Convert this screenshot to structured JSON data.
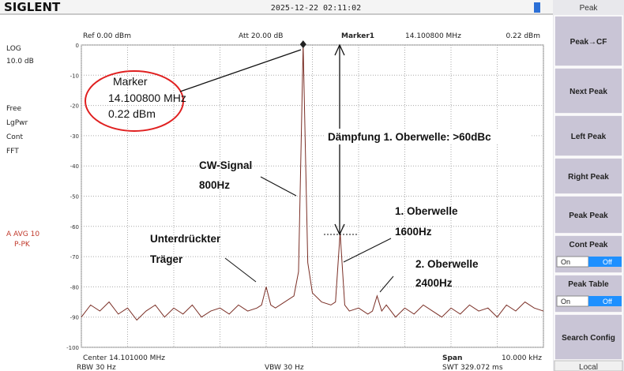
{
  "header": {
    "brand": "SIGLENT",
    "datetime": "2025-12-22  02:11:02"
  },
  "info": {
    "ref": "Ref 0.00 dBm",
    "att": "Att 20.00 dB",
    "marker": "Marker1",
    "marker_freq": "14.100800 MHz",
    "marker_level": "0.22 dBm"
  },
  "left_panel": [
    "LOG",
    "10.0 dB",
    "Free",
    "LgPwr",
    "Cont",
    "FFT"
  ],
  "trace_mode": [
    "A AVG 10",
    "P-PK"
  ],
  "footer": {
    "center": "Center 14.101000 MHz",
    "span_label": "Span",
    "span": "10.000 kHz",
    "rbw": "RBW 30 Hz",
    "vbw": "VBW 30 Hz",
    "swt": "SWT 329.072 ms"
  },
  "menu": {
    "title": "Peak",
    "buttons": [
      "Peak→CF",
      "Next Peak",
      "Left Peak",
      "Right Peak",
      "Peak Peak"
    ],
    "toggles": [
      {
        "label": "Cont Peak",
        "on": "On",
        "off": "Off"
      },
      {
        "label": "Peak Table",
        "on": "On",
        "off": "Off"
      }
    ],
    "search": "Search Config",
    "local": "Local"
  },
  "annotations": {
    "marker_box": [
      "Marker",
      "14.100800 MHz",
      "0.22 dBm"
    ],
    "attenuation": "Dämpfung 1. Oberwelle: >60dBc",
    "cw": [
      "CW-Signal",
      "800Hz"
    ],
    "harmonic1": [
      "1. Oberwelle",
      "1600Hz"
    ],
    "carrier": [
      "Unterdrückter",
      "Träger"
    ],
    "harmonic2": [
      "2. Oberwelle",
      "2400Hz"
    ]
  },
  "chart_data": {
    "type": "line",
    "x": [
      14.096,
      14.0962,
      14.0964,
      14.0966,
      14.0968,
      14.097,
      14.0972,
      14.0974,
      14.0976,
      14.0978,
      14.098,
      14.0982,
      14.0984,
      14.0986,
      14.0988,
      14.099,
      14.0992,
      14.0994,
      14.0996,
      14.0998,
      14.0999,
      14.1,
      14.1001,
      14.1002,
      14.1004,
      14.1006,
      14.1007,
      14.1008,
      14.1009,
      14.101,
      14.1012,
      14.1014,
      14.1015,
      14.1016,
      14.1017,
      14.1018,
      14.102,
      14.1022,
      14.1023,
      14.1024,
      14.1025,
      14.1026,
      14.1028,
      14.103,
      14.1032,
      14.1034,
      14.1036,
      14.1038,
      14.104,
      14.1042,
      14.1044,
      14.1046,
      14.1048,
      14.105,
      14.1052,
      14.1054,
      14.1056,
      14.1058,
      14.106
    ],
    "series": [
      {
        "color": "#7a2e25",
        "values": [
          -90,
          -86,
          -88,
          -85,
          -89,
          -87,
          -91,
          -88,
          -86,
          -90,
          -87,
          -89,
          -86,
          -90,
          -88,
          -87,
          -89,
          -86,
          -88,
          -87,
          -86,
          -80,
          -86,
          -87,
          -85,
          -83,
          -75,
          0.22,
          -72,
          -82,
          -85,
          -86,
          -85,
          -62,
          -86,
          -88,
          -87,
          -89,
          -88,
          -83,
          -88,
          -86,
          -90,
          -87,
          -89,
          -86,
          -88,
          -90,
          -87,
          -89,
          -86,
          -88,
          -87,
          -90,
          -86,
          -88,
          -85,
          -87,
          -88
        ]
      }
    ],
    "xlim": [
      14.096,
      14.106
    ],
    "xticks": [
      14.096,
      14.097,
      14.098,
      14.099,
      14.1,
      14.101,
      14.102,
      14.103,
      14.104,
      14.105,
      14.106
    ],
    "ylim": [
      -100,
      0
    ],
    "yticks": [
      0,
      -10,
      -20,
      -30,
      -40,
      -50,
      -60,
      -70,
      -80,
      -90,
      -100
    ],
    "grid": true,
    "marker_index": 27
  }
}
